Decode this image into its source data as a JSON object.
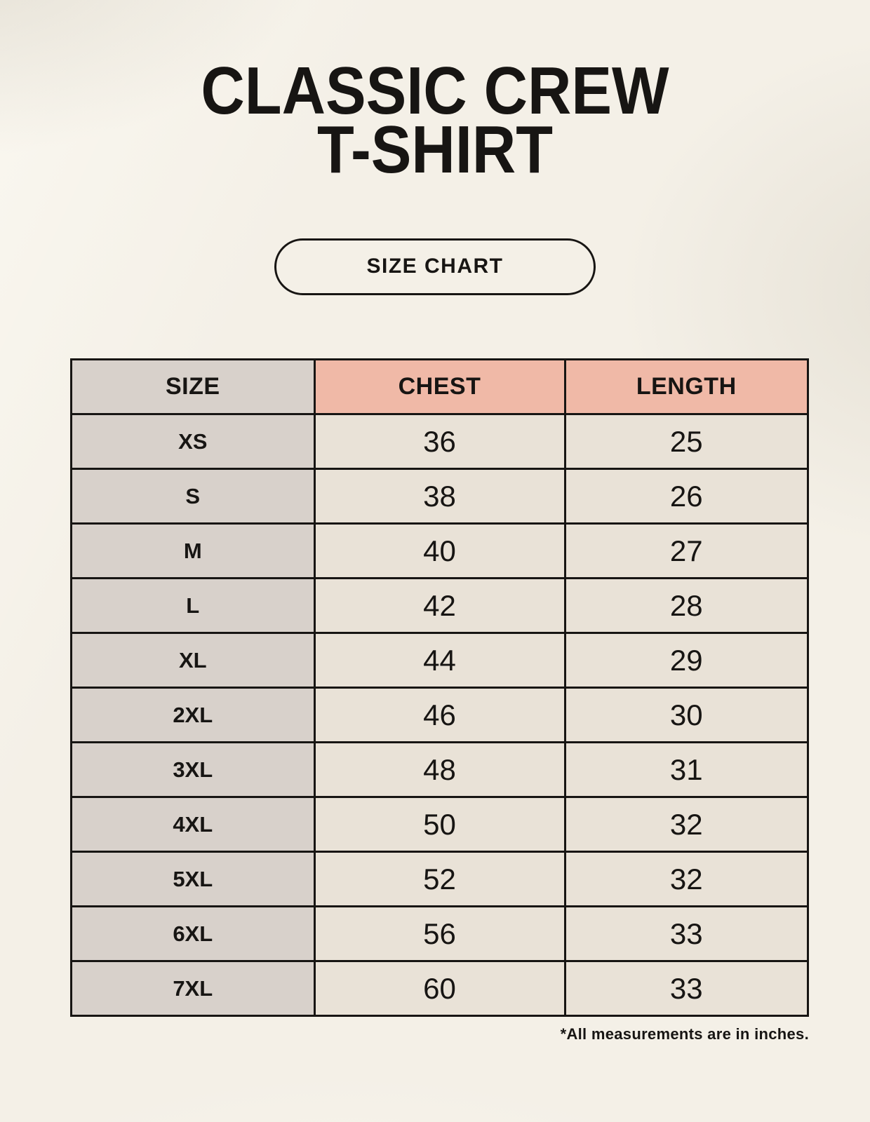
{
  "header": {
    "title_line1": "CLASSIC CREW",
    "title_line2": "T-SHIRT",
    "badge_label": "SIZE CHART"
  },
  "chart_data": {
    "type": "table",
    "title": "CLASSIC CREW T-SHIRT",
    "subtitle": "SIZE CHART",
    "columns": [
      "SIZE",
      "CHEST",
      "LENGTH"
    ],
    "rows": [
      [
        "XS",
        "36",
        "25"
      ],
      [
        "S",
        "38",
        "26"
      ],
      [
        "M",
        "40",
        "27"
      ],
      [
        "L",
        "42",
        "28"
      ],
      [
        "XL",
        "44",
        "29"
      ],
      [
        "2XL",
        "46",
        "30"
      ],
      [
        "3XL",
        "48",
        "31"
      ],
      [
        "4XL",
        "50",
        "32"
      ],
      [
        "5XL",
        "52",
        "32"
      ],
      [
        "6XL",
        "56",
        "33"
      ],
      [
        "7XL",
        "60",
        "33"
      ]
    ],
    "units_note": "*All measurements are in inches."
  },
  "footnote": "*All measurements are in inches.",
  "colors": {
    "background": "#f4f0e7",
    "size_column_bg": "#d8d1cb",
    "header_accent_bg": "#f0b9a7",
    "data_cell_bg": "#e9e2d7",
    "text": "#171513",
    "border": "#171513"
  }
}
